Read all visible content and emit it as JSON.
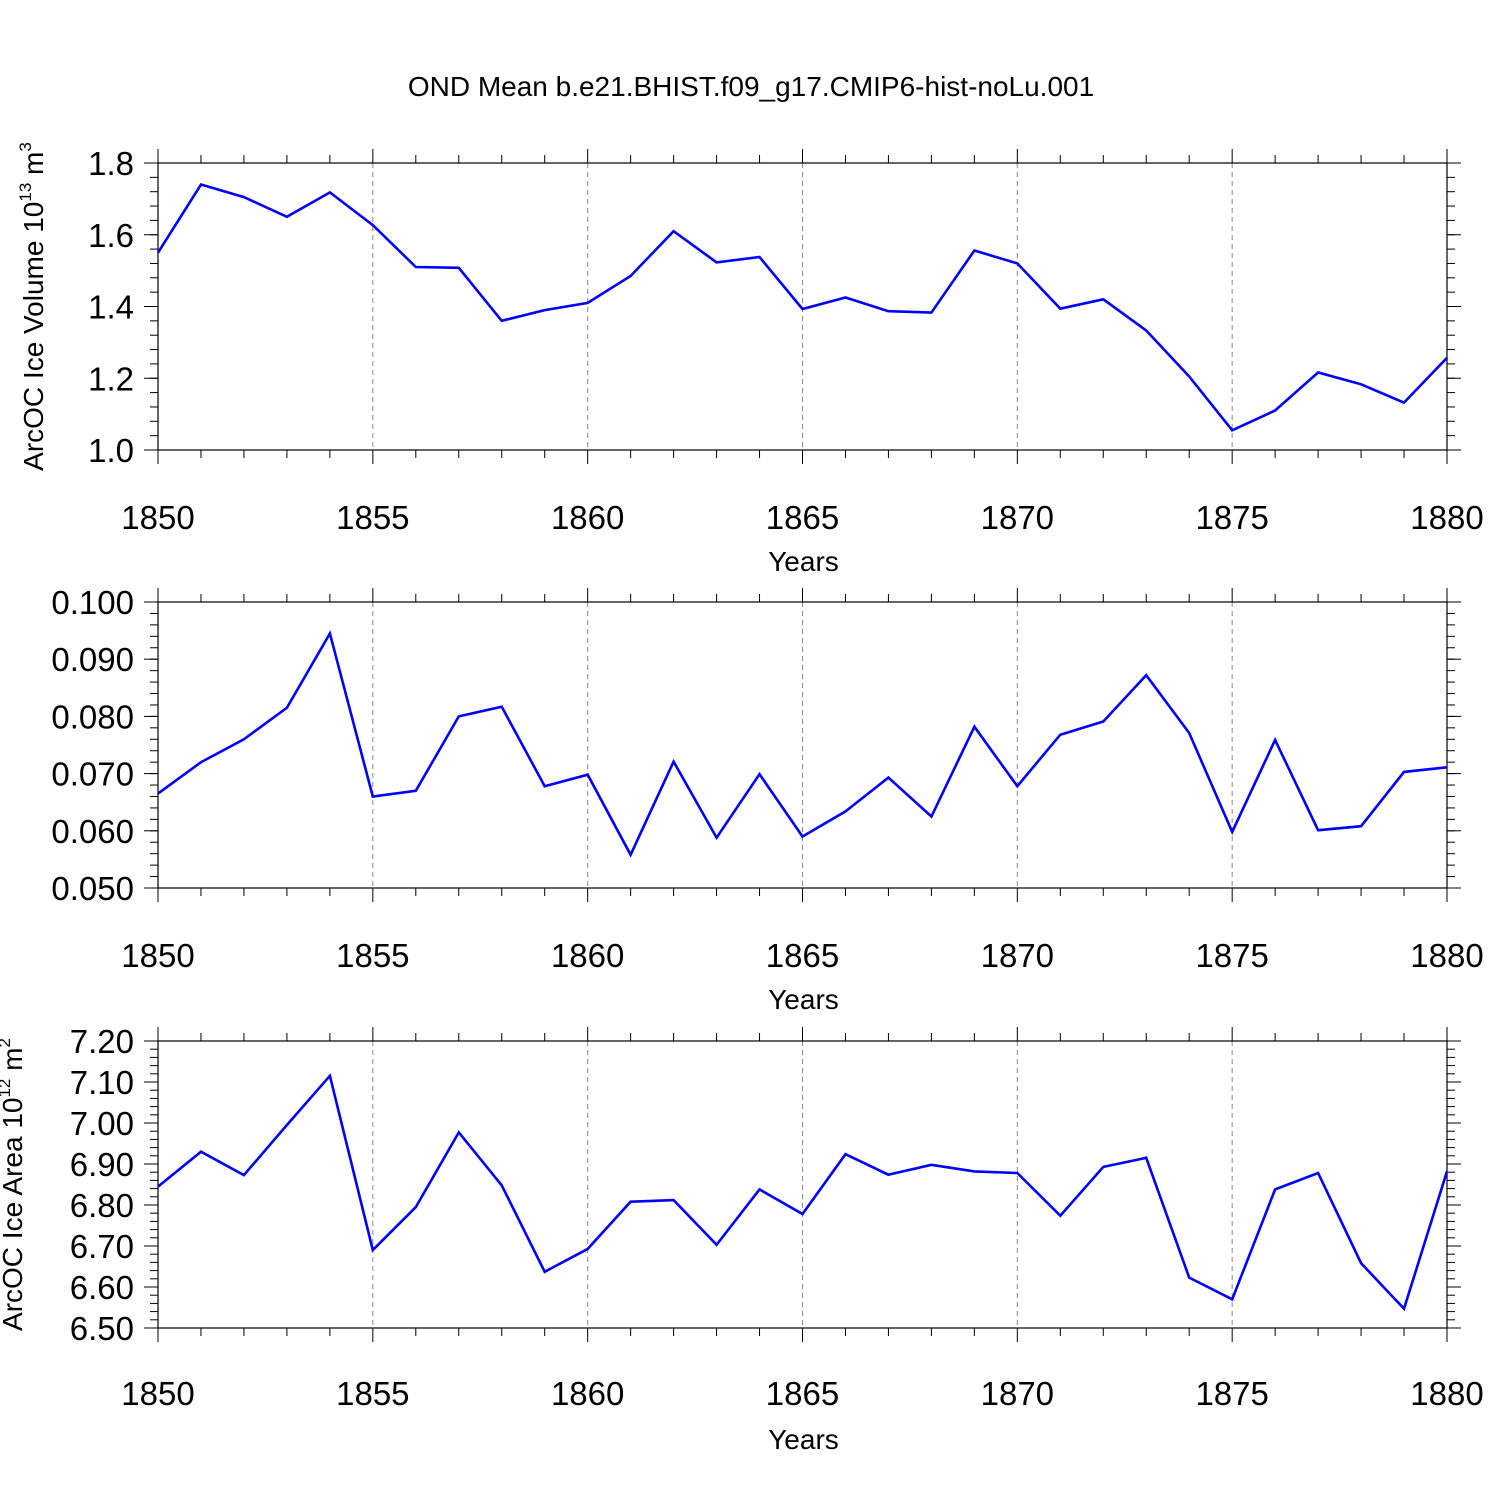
{
  "title": "OND Mean b.e21.BHIST.f09_g17.CMIP6-hist-noLu.001",
  "colors": {
    "line": "#0000ff",
    "axis": "#000000",
    "grid": "#888888"
  },
  "chart_data": [
    {
      "type": "line",
      "xlabel": "Years",
      "ylabel": {
        "base": "ArcOC Ice Volume 10",
        "exp": "13",
        "unit": " m",
        "unit_exp": "3"
      },
      "xlim": [
        1850,
        1880
      ],
      "ylim": [
        1.0,
        1.8
      ],
      "x_ticks": [
        1850,
        1855,
        1860,
        1865,
        1870,
        1875,
        1880
      ],
      "y_ticks": [
        "1.0",
        "1.2",
        "1.4",
        "1.6",
        "1.8"
      ],
      "x": [
        1850,
        1851,
        1852,
        1853,
        1854,
        1855,
        1856,
        1857,
        1858,
        1859,
        1860,
        1861,
        1862,
        1863,
        1864,
        1865,
        1866,
        1867,
        1868,
        1869,
        1870,
        1871,
        1872,
        1873,
        1874,
        1875,
        1876,
        1877,
        1878,
        1879,
        1880
      ],
      "values": [
        1.55,
        1.74,
        1.705,
        1.65,
        1.718,
        1.627,
        1.51,
        1.508,
        1.36,
        1.39,
        1.41,
        1.485,
        1.61,
        1.523,
        1.538,
        1.393,
        1.425,
        1.387,
        1.383,
        1.556,
        1.52,
        1.394,
        1.42,
        1.333,
        1.205,
        1.055,
        1.11,
        1.216,
        1.183,
        1.132,
        1.257
      ]
    },
    {
      "type": "line",
      "xlabel": "Years",
      "ylabel": null,
      "xlim": [
        1850,
        1880
      ],
      "ylim": [
        0.05,
        0.1
      ],
      "x_ticks": [
        1850,
        1855,
        1860,
        1865,
        1870,
        1875,
        1880
      ],
      "y_ticks": [
        "0.050",
        "0.060",
        "0.070",
        "0.080",
        "0.090",
        "0.100"
      ],
      "x": [
        1850,
        1851,
        1852,
        1853,
        1854,
        1855,
        1856,
        1857,
        1858,
        1859,
        1860,
        1861,
        1862,
        1863,
        1864,
        1865,
        1866,
        1867,
        1868,
        1869,
        1870,
        1871,
        1872,
        1873,
        1874,
        1875,
        1876,
        1877,
        1878,
        1879,
        1880
      ],
      "values": [
        0.0665,
        0.072,
        0.076,
        0.0815,
        0.0945,
        0.066,
        0.067,
        0.08,
        0.0817,
        0.0678,
        0.0698,
        0.0558,
        0.0721,
        0.0588,
        0.0699,
        0.059,
        0.0634,
        0.0693,
        0.0625,
        0.0782,
        0.0678,
        0.0768,
        0.0791,
        0.0872,
        0.0771,
        0.0598,
        0.0759,
        0.0601,
        0.0608,
        0.0703,
        0.0711
      ]
    },
    {
      "type": "line",
      "xlabel": "Years",
      "ylabel": {
        "base": "ArcOC Ice Area 10",
        "exp": "12",
        "unit": " m",
        "unit_exp": "2"
      },
      "xlim": [
        1850,
        1880
      ],
      "ylim": [
        6.5,
        7.2
      ],
      "x_ticks": [
        1850,
        1855,
        1860,
        1865,
        1870,
        1875,
        1880
      ],
      "y_ticks": [
        "6.50",
        "6.60",
        "6.70",
        "6.80",
        "6.90",
        "7.00",
        "7.10",
        "7.20"
      ],
      "x": [
        1850,
        1851,
        1852,
        1853,
        1854,
        1855,
        1856,
        1857,
        1858,
        1859,
        1860,
        1861,
        1862,
        1863,
        1864,
        1865,
        1866,
        1867,
        1868,
        1869,
        1870,
        1871,
        1872,
        1873,
        1874,
        1875,
        1876,
        1877,
        1878,
        1879,
        1880
      ],
      "values": [
        6.845,
        6.93,
        6.873,
        6.995,
        7.115,
        6.69,
        6.795,
        6.977,
        6.848,
        6.637,
        6.693,
        6.808,
        6.812,
        6.703,
        6.838,
        6.778,
        6.924,
        6.874,
        6.898,
        6.882,
        6.878,
        6.774,
        6.893,
        6.915,
        6.623,
        6.57,
        6.838,
        6.878,
        6.658,
        6.547,
        6.882
      ]
    }
  ]
}
